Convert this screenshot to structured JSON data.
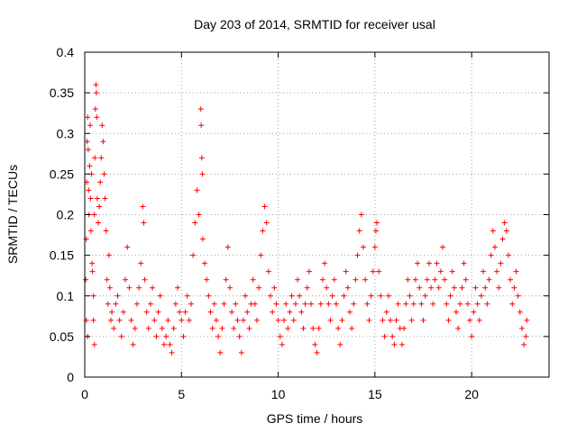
{
  "chart_data": {
    "type": "scatter",
    "title": "Day 203 of 2014, SRMTID for receiver usal",
    "xlabel": "GPS time / hours",
    "ylabel": "SRMTID / TECUs",
    "xlim": [
      0,
      24
    ],
    "ylim": [
      0,
      0.4
    ],
    "xticks": [
      "0",
      "5",
      "10",
      "15",
      "20"
    ],
    "yticks": [
      "0",
      "0.05",
      "0.1",
      "0.15",
      "0.2",
      "0.25",
      "0.3",
      "0.35",
      "0.4"
    ],
    "grid": true,
    "legend": "none",
    "marker": "plus",
    "series": [
      {
        "color": "#ff0000",
        "points": [
          [
            0.05,
            0.12
          ],
          [
            0.08,
            0.17
          ],
          [
            0.1,
            0.24
          ],
          [
            0.12,
            0.29
          ],
          [
            0.15,
            0.32
          ],
          [
            0.18,
            0.28
          ],
          [
            0.2,
            0.23
          ],
          [
            0.22,
            0.2
          ],
          [
            0.25,
            0.26
          ],
          [
            0.28,
            0.31
          ],
          [
            0.3,
            0.22
          ],
          [
            0.32,
            0.18
          ],
          [
            0.35,
            0.25
          ],
          [
            0.38,
            0.14
          ],
          [
            0.4,
            0.13
          ],
          [
            0.45,
            0.1
          ],
          [
            0.5,
            0.2
          ],
          [
            0.52,
            0.27
          ],
          [
            0.55,
            0.33
          ],
          [
            0.58,
            0.36
          ],
          [
            0.6,
            0.35
          ],
          [
            0.62,
            0.32
          ],
          [
            0.65,
            0.22
          ],
          [
            0.7,
            0.19
          ],
          [
            0.75,
            0.21
          ],
          [
            0.8,
            0.24
          ],
          [
            0.85,
            0.27
          ],
          [
            0.9,
            0.31
          ],
          [
            0.95,
            0.29
          ],
          [
            1.0,
            0.25
          ],
          [
            1.05,
            0.22
          ],
          [
            1.1,
            0.18
          ],
          [
            1.15,
            0.12
          ],
          [
            1.2,
            0.09
          ],
          [
            1.25,
            0.15
          ],
          [
            1.3,
            0.11
          ],
          [
            1.35,
            0.07
          ],
          [
            0.08,
            0.07
          ],
          [
            0.15,
            0.05
          ],
          [
            0.5,
            0.04
          ],
          [
            0.45,
            0.07
          ],
          [
            1.4,
            0.08
          ],
          [
            1.5,
            0.06
          ],
          [
            1.6,
            0.09
          ],
          [
            1.7,
            0.1
          ],
          [
            1.8,
            0.07
          ],
          [
            1.9,
            0.05
          ],
          [
            2.0,
            0.08
          ],
          [
            2.1,
            0.12
          ],
          [
            2.2,
            0.16
          ],
          [
            2.3,
            0.11
          ],
          [
            2.4,
            0.07
          ],
          [
            2.5,
            0.04
          ],
          [
            2.6,
            0.06
          ],
          [
            2.7,
            0.09
          ],
          [
            2.8,
            0.11
          ],
          [
            2.9,
            0.14
          ],
          [
            3.0,
            0.21
          ],
          [
            3.05,
            0.19
          ],
          [
            3.1,
            0.12
          ],
          [
            3.2,
            0.08
          ],
          [
            3.3,
            0.06
          ],
          [
            3.4,
            0.09
          ],
          [
            3.5,
            0.11
          ],
          [
            3.6,
            0.07
          ],
          [
            3.7,
            0.05
          ],
          [
            3.8,
            0.08
          ],
          [
            3.9,
            0.1
          ],
          [
            4.0,
            0.06
          ],
          [
            4.1,
            0.04
          ],
          [
            4.2,
            0.05
          ],
          [
            4.3,
            0.07
          ],
          [
            4.4,
            0.04
          ],
          [
            4.5,
            0.03
          ],
          [
            4.6,
            0.06
          ],
          [
            4.7,
            0.09
          ],
          [
            4.8,
            0.11
          ],
          [
            4.9,
            0.08
          ],
          [
            5.0,
            0.07
          ],
          [
            5.1,
            0.05
          ],
          [
            5.2,
            0.08
          ],
          [
            5.3,
            0.1
          ],
          [
            5.4,
            0.07
          ],
          [
            5.5,
            0.09
          ],
          [
            5.6,
            0.15
          ],
          [
            5.7,
            0.19
          ],
          [
            5.8,
            0.23
          ],
          [
            5.9,
            0.2
          ],
          [
            6.0,
            0.33
          ],
          [
            6.02,
            0.31
          ],
          [
            6.05,
            0.27
          ],
          [
            6.08,
            0.25
          ],
          [
            6.1,
            0.17
          ],
          [
            6.2,
            0.14
          ],
          [
            6.3,
            0.12
          ],
          [
            6.4,
            0.1
          ],
          [
            6.5,
            0.08
          ],
          [
            6.6,
            0.06
          ],
          [
            6.7,
            0.09
          ],
          [
            6.8,
            0.07
          ],
          [
            6.9,
            0.05
          ],
          [
            7.0,
            0.03
          ],
          [
            7.1,
            0.06
          ],
          [
            7.2,
            0.09
          ],
          [
            7.3,
            0.12
          ],
          [
            7.4,
            0.16
          ],
          [
            7.5,
            0.11
          ],
          [
            7.6,
            0.08
          ],
          [
            7.7,
            0.06
          ],
          [
            7.8,
            0.09
          ],
          [
            7.9,
            0.07
          ],
          [
            8.0,
            0.05
          ],
          [
            8.1,
            0.03
          ],
          [
            8.2,
            0.07
          ],
          [
            8.3,
            0.1
          ],
          [
            8.4,
            0.08
          ],
          [
            8.5,
            0.06
          ],
          [
            8.6,
            0.09
          ],
          [
            8.7,
            0.12
          ],
          [
            8.8,
            0.09
          ],
          [
            8.9,
            0.07
          ],
          [
            9.0,
            0.11
          ],
          [
            9.1,
            0.15
          ],
          [
            9.2,
            0.18
          ],
          [
            9.3,
            0.21
          ],
          [
            9.4,
            0.19
          ],
          [
            9.5,
            0.13
          ],
          [
            9.6,
            0.1
          ],
          [
            9.7,
            0.08
          ],
          [
            9.8,
            0.11
          ],
          [
            9.9,
            0.09
          ],
          [
            10.0,
            0.07
          ],
          [
            10.1,
            0.05
          ],
          [
            10.2,
            0.04
          ],
          [
            10.3,
            0.07
          ],
          [
            10.4,
            0.09
          ],
          [
            10.5,
            0.06
          ],
          [
            10.6,
            0.08
          ],
          [
            10.7,
            0.1
          ],
          [
            10.8,
            0.07
          ],
          [
            10.9,
            0.09
          ],
          [
            11.0,
            0.12
          ],
          [
            11.1,
            0.1
          ],
          [
            11.2,
            0.08
          ],
          [
            11.3,
            0.06
          ],
          [
            11.4,
            0.09
          ],
          [
            11.5,
            0.11
          ],
          [
            11.6,
            0.13
          ],
          [
            11.7,
            0.09
          ],
          [
            11.8,
            0.06
          ],
          [
            11.9,
            0.04
          ],
          [
            12.0,
            0.03
          ],
          [
            12.1,
            0.06
          ],
          [
            12.2,
            0.09
          ],
          [
            12.3,
            0.12
          ],
          [
            12.4,
            0.14
          ],
          [
            12.5,
            0.11
          ],
          [
            12.6,
            0.09
          ],
          [
            12.7,
            0.07
          ],
          [
            12.8,
            0.1
          ],
          [
            12.9,
            0.12
          ],
          [
            13.0,
            0.09
          ],
          [
            13.1,
            0.06
          ],
          [
            13.2,
            0.04
          ],
          [
            13.3,
            0.07
          ],
          [
            13.4,
            0.1
          ],
          [
            13.5,
            0.13
          ],
          [
            13.6,
            0.11
          ],
          [
            13.7,
            0.08
          ],
          [
            13.8,
            0.06
          ],
          [
            13.9,
            0.09
          ],
          [
            14.0,
            0.12
          ],
          [
            14.1,
            0.15
          ],
          [
            14.2,
            0.18
          ],
          [
            14.3,
            0.2
          ],
          [
            14.4,
            0.16
          ],
          [
            14.5,
            0.12
          ],
          [
            14.6,
            0.09
          ],
          [
            14.7,
            0.07
          ],
          [
            14.8,
            0.1
          ],
          [
            14.9,
            0.13
          ],
          [
            15.0,
            0.16
          ],
          [
            15.05,
            0.18
          ],
          [
            15.1,
            0.19
          ],
          [
            15.2,
            0.13
          ],
          [
            15.3,
            0.1
          ],
          [
            15.4,
            0.07
          ],
          [
            15.5,
            0.05
          ],
          [
            15.6,
            0.08
          ],
          [
            15.7,
            0.1
          ],
          [
            15.8,
            0.07
          ],
          [
            15.9,
            0.05
          ],
          [
            16.0,
            0.04
          ],
          [
            16.1,
            0.07
          ],
          [
            16.2,
            0.09
          ],
          [
            16.3,
            0.06
          ],
          [
            16.4,
            0.04
          ],
          [
            16.5,
            0.06
          ],
          [
            16.6,
            0.09
          ],
          [
            16.7,
            0.12
          ],
          [
            16.8,
            0.1
          ],
          [
            16.9,
            0.07
          ],
          [
            17.0,
            0.09
          ],
          [
            17.1,
            0.12
          ],
          [
            17.2,
            0.14
          ],
          [
            17.3,
            0.11
          ],
          [
            17.4,
            0.09
          ],
          [
            17.5,
            0.07
          ],
          [
            17.6,
            0.1
          ],
          [
            17.7,
            0.12
          ],
          [
            17.8,
            0.14
          ],
          [
            17.9,
            0.11
          ],
          [
            18.0,
            0.09
          ],
          [
            18.1,
            0.12
          ],
          [
            18.2,
            0.14
          ],
          [
            18.3,
            0.11
          ],
          [
            18.4,
            0.13
          ],
          [
            18.5,
            0.16
          ],
          [
            18.6,
            0.12
          ],
          [
            18.7,
            0.09
          ],
          [
            18.8,
            0.07
          ],
          [
            18.9,
            0.1
          ],
          [
            19.0,
            0.13
          ],
          [
            19.1,
            0.11
          ],
          [
            19.2,
            0.08
          ],
          [
            19.3,
            0.06
          ],
          [
            19.4,
            0.09
          ],
          [
            19.5,
            0.11
          ],
          [
            19.6,
            0.14
          ],
          [
            19.7,
            0.12
          ],
          [
            19.8,
            0.09
          ],
          [
            19.9,
            0.07
          ],
          [
            20.0,
            0.05
          ],
          [
            20.1,
            0.08
          ],
          [
            20.2,
            0.11
          ],
          [
            20.3,
            0.09
          ],
          [
            20.4,
            0.07
          ],
          [
            20.5,
            0.1
          ],
          [
            20.6,
            0.13
          ],
          [
            20.7,
            0.11
          ],
          [
            20.8,
            0.09
          ],
          [
            20.9,
            0.12
          ],
          [
            21.0,
            0.15
          ],
          [
            21.1,
            0.18
          ],
          [
            21.2,
            0.16
          ],
          [
            21.3,
            0.13
          ],
          [
            21.4,
            0.11
          ],
          [
            21.5,
            0.14
          ],
          [
            21.6,
            0.17
          ],
          [
            21.7,
            0.19
          ],
          [
            21.8,
            0.18
          ],
          [
            21.9,
            0.15
          ],
          [
            22.0,
            0.12
          ],
          [
            22.1,
            0.09
          ],
          [
            22.2,
            0.11
          ],
          [
            22.3,
            0.13
          ],
          [
            22.4,
            0.1
          ],
          [
            22.5,
            0.08
          ],
          [
            22.6,
            0.06
          ],
          [
            22.7,
            0.04
          ],
          [
            22.8,
            0.05
          ],
          [
            22.85,
            0.07
          ]
        ]
      }
    ]
  }
}
